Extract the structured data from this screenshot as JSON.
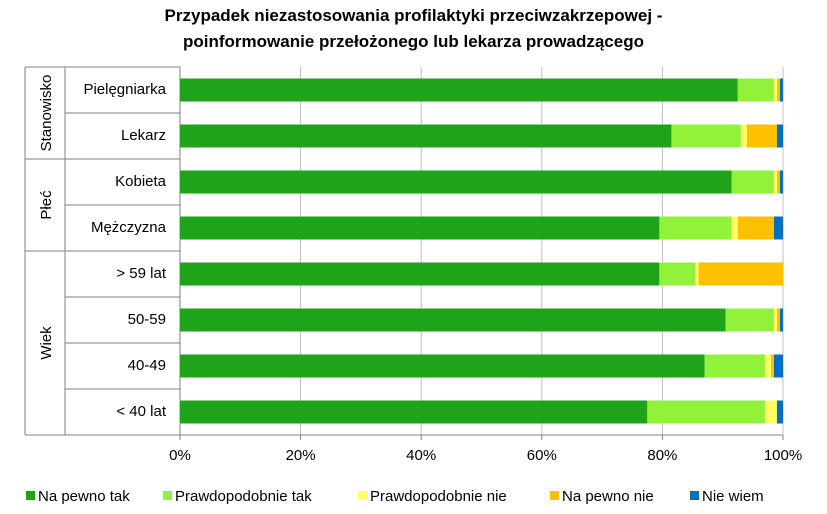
{
  "chart_data": {
    "type": "bar",
    "orientation": "horizontal",
    "stacked": "percent",
    "title_line1": "Przypadek niezastosowania  profilaktyki przeciwzakrzepowej -",
    "title_line2": "poinformowanie przełożonego lub lekarza prowadzącego",
    "xlim": [
      0,
      100
    ],
    "x_ticks": [
      "0%",
      "20%",
      "40%",
      "60%",
      "80%",
      "100%"
    ],
    "grid": true,
    "legend_position": "bottom",
    "groups": [
      {
        "name": "Stanowisko",
        "categories": [
          "Pielęgniarka",
          "Lekarz"
        ]
      },
      {
        "name": "Płeć",
        "categories": [
          "Kobieta",
          "Mężczyzna"
        ]
      },
      {
        "name": "Wiek",
        "categories": [
          "> 59 lat",
          "50-59",
          "40-49",
          "< 40 lat"
        ]
      }
    ],
    "categories": [
      "Pielęgniarka",
      "Lekarz",
      "Kobieta",
      "Mężczyzna",
      "> 59 lat",
      "50-59",
      "40-49",
      "< 40 lat"
    ],
    "series": [
      {
        "name": "Na pewno tak",
        "color": "#1FA318",
        "values": [
          92.5,
          81.5,
          91.5,
          79.5,
          79.5,
          90.5,
          87,
          77.5
        ]
      },
      {
        "name": "Prawdopodobnie tak",
        "color": "#92F23A",
        "values": [
          6,
          11.5,
          7,
          12,
          6,
          8,
          10,
          19.5
        ]
      },
      {
        "name": "Prawdopodobnie nie",
        "color": "#FFFF66",
        "values": [
          0.5,
          1,
          0.5,
          1,
          0.5,
          0.5,
          1,
          2
        ]
      },
      {
        "name": "Na pewno nie",
        "color": "#FFC000",
        "values": [
          0.5,
          5,
          0.5,
          6,
          14,
          0.5,
          0.5,
          0
        ]
      },
      {
        "name": "Nie wiem",
        "color": "#0070C0",
        "values": [
          0.5,
          1,
          0.5,
          1.5,
          0,
          0.5,
          1.5,
          1
        ]
      }
    ]
  }
}
